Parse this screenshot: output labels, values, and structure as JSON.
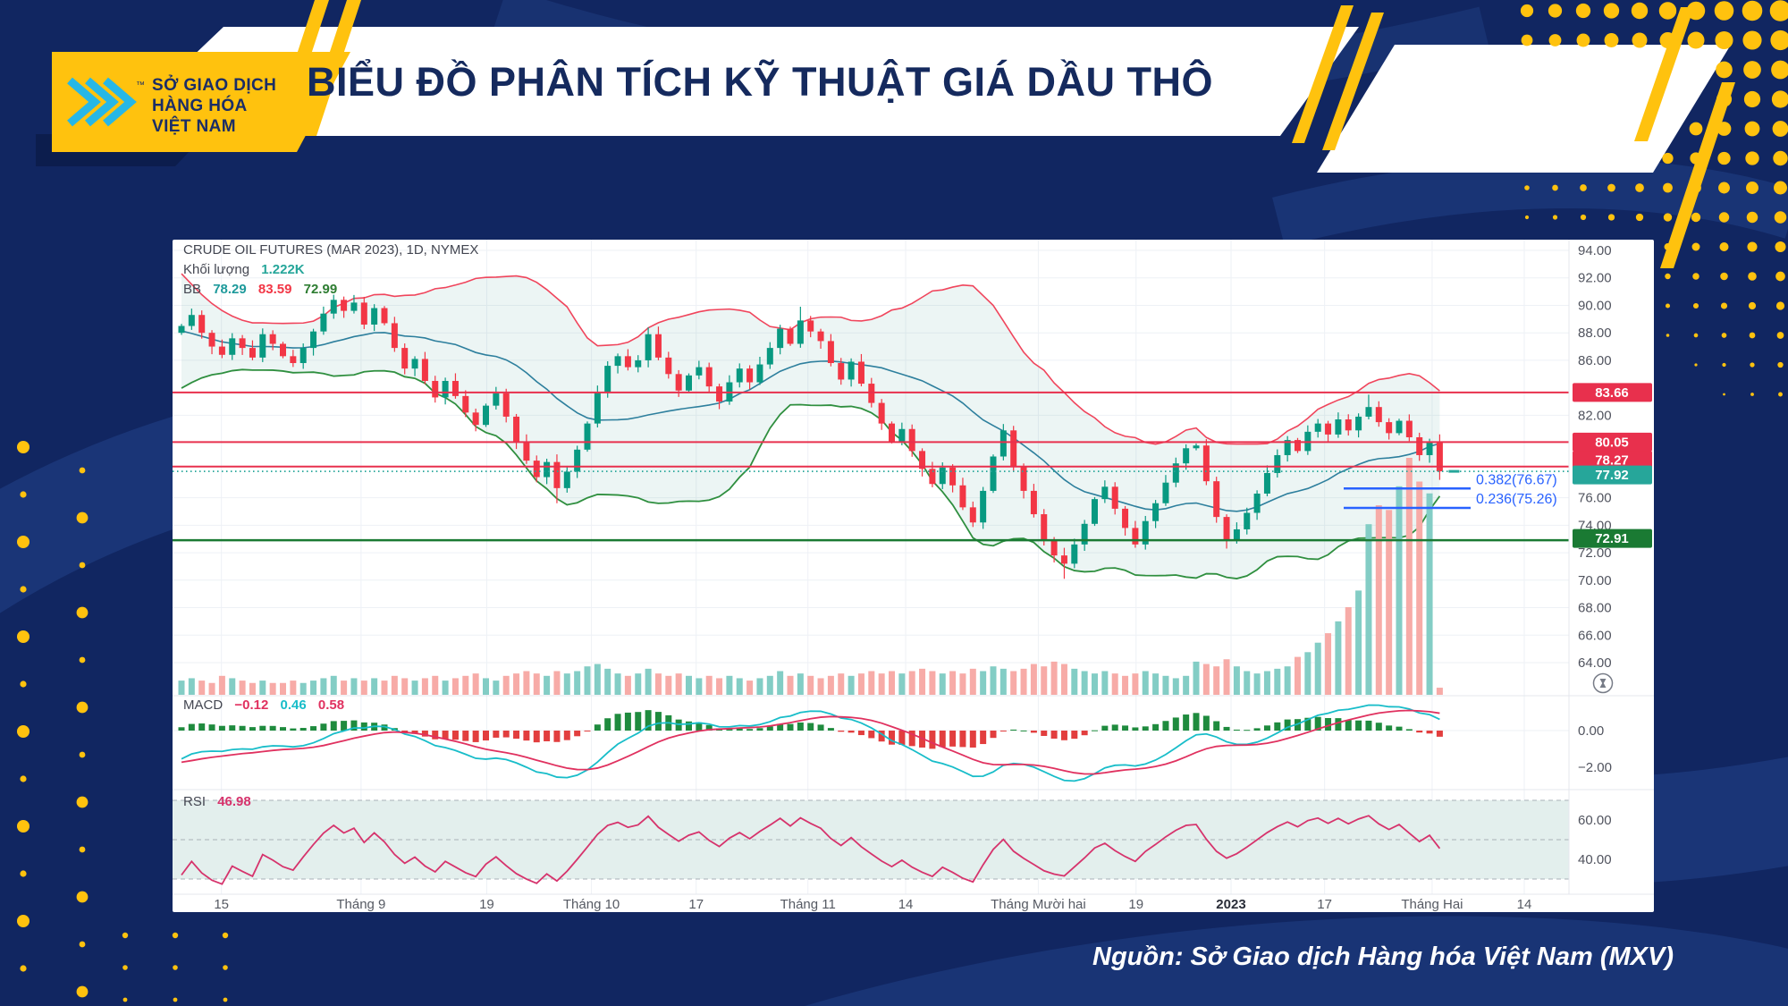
{
  "header": {
    "title": "BIỂU ĐỒ PHÂN TÍCH KỸ THUẬT GIÁ DẦU THÔ",
    "logo_line1": "SỞ GIAO DỊCH",
    "logo_line2": "HÀNG HÓA",
    "logo_line3": "VIỆT NAM",
    "trademark": "TM"
  },
  "footer": {
    "source": "Nguồn: Sở Giao dịch Hàng hóa Việt Nam (MXV)"
  },
  "legend": {
    "symbol": "CRUDE OIL FUTURES (MAR 2023), 1D, NYMEX",
    "volume_label": "Khối lượng",
    "volume_value": "1.222K",
    "bb_label": "BB",
    "bb_v1": "78.29",
    "bb_v2": "83.59",
    "bb_v3": "72.99"
  },
  "macd_legend": {
    "label": "MACD",
    "v1": "−0.12",
    "v2": "0.46",
    "v3": "0.58"
  },
  "rsi_legend": {
    "label": "RSI",
    "value": "46.98"
  },
  "brand_colors": {
    "navy": "#112661",
    "yellow": "#ffc20e",
    "cyan": "#27b7e6",
    "title_navy": "#152a5e"
  },
  "chart_data": {
    "type": "candlestick",
    "symbol": "CRUDE OIL FUTURES (MAR 2023)",
    "interval": "1D",
    "exchange": "NYMEX",
    "ylim": [
      63.5,
      94.8
    ],
    "price_ticks": [
      94,
      92,
      90,
      88,
      86,
      82,
      76,
      74,
      72,
      70,
      68,
      66,
      64
    ],
    "levels": [
      {
        "price": 83.66,
        "badge": "83.66",
        "color": "#e8304d",
        "style": "solid",
        "badge_dy": 0
      },
      {
        "price": 80.05,
        "badge": "80.05",
        "color": "#e8304d",
        "style": "solid",
        "badge_dy": 0
      },
      {
        "price": 78.27,
        "badge": "78.27",
        "color": "#e8304d",
        "style": "solid",
        "badge_dy": -7
      },
      {
        "price": 77.92,
        "badge": "77.92",
        "color": "#26a69a",
        "style": "dotted",
        "badge_dy": 4
      },
      {
        "price": 72.91,
        "badge": "72.91",
        "color": "#1a7a33",
        "style": "solid",
        "badge_dy": -2
      }
    ],
    "fib_levels": [
      {
        "label": "0.382(76.67)",
        "price": 76.67
      },
      {
        "label": "0.236(75.26)",
        "price": 75.26
      }
    ],
    "x_labels": [
      {
        "t": "15",
        "f": 0.035,
        "bold": false
      },
      {
        "t": "Tháng 9",
        "f": 0.135,
        "bold": false
      },
      {
        "t": "19",
        "f": 0.225,
        "bold": false
      },
      {
        "t": "Tháng 10",
        "f": 0.3,
        "bold": false
      },
      {
        "t": "17",
        "f": 0.375,
        "bold": false
      },
      {
        "t": "Tháng 11",
        "f": 0.455,
        "bold": false
      },
      {
        "t": "14",
        "f": 0.525,
        "bold": false
      },
      {
        "t": "Tháng Mười hai",
        "f": 0.62,
        "bold": false
      },
      {
        "t": "19",
        "f": 0.69,
        "bold": false
      },
      {
        "t": "2023",
        "f": 0.758,
        "bold": true
      },
      {
        "t": "17",
        "f": 0.825,
        "bold": false
      },
      {
        "t": "Tháng Hai",
        "f": 0.902,
        "bold": false
      },
      {
        "t": "14",
        "f": 0.968,
        "bold": false
      }
    ],
    "open_first": 88.0,
    "seed_closes": [
      94.0,
      93.0,
      92.1,
      91.2,
      90.4,
      89.8,
      89.1,
      88.5,
      87.9,
      87.5,
      87.1,
      86.8,
      86.6,
      86.5,
      86.4,
      86.3,
      86.2,
      86.1,
      86.0,
      86.8
    ],
    "close": [
      88.5,
      89.3,
      88.0,
      87.0,
      86.4,
      87.6,
      86.9,
      86.2,
      87.9,
      87.2,
      86.3,
      85.8,
      86.9,
      88.1,
      89.4,
      90.4,
      89.6,
      90.2,
      88.6,
      89.8,
      88.7,
      86.9,
      85.4,
      86.1,
      84.5,
      83.3,
      84.5,
      83.4,
      82.2,
      81.3,
      82.7,
      83.6,
      81.9,
      80.1,
      78.7,
      77.5,
      78.6,
      76.7,
      77.9,
      79.5,
      81.4,
      83.7,
      85.6,
      86.3,
      85.5,
      86.0,
      87.9,
      86.2,
      85.0,
      83.8,
      84.9,
      85.5,
      84.1,
      83.0,
      84.4,
      85.4,
      84.4,
      85.7,
      86.9,
      88.3,
      87.2,
      88.9,
      88.1,
      87.4,
      85.8,
      84.6,
      85.9,
      84.3,
      82.9,
      81.4,
      80.1,
      81.0,
      79.4,
      78.1,
      77.0,
      78.2,
      76.9,
      75.3,
      74.2,
      76.5,
      79.0,
      80.9,
      78.3,
      76.5,
      74.8,
      72.9,
      71.8,
      71.2,
      72.6,
      74.1,
      75.9,
      76.8,
      75.2,
      73.8,
      72.6,
      74.3,
      75.6,
      77.1,
      78.5,
      79.6,
      79.8,
      77.2,
      74.6,
      72.9,
      73.7,
      74.9,
      76.3,
      77.8,
      79.1,
      80.2,
      79.4,
      80.8,
      81.4,
      80.6,
      81.7,
      80.9,
      81.9,
      82.6,
      81.5,
      80.7,
      81.6,
      80.4,
      79.1,
      80.1,
      77.92
    ],
    "volume": [
      0.06,
      0.07,
      0.06,
      0.05,
      0.08,
      0.07,
      0.06,
      0.05,
      0.06,
      0.05,
      0.05,
      0.06,
      0.05,
      0.06,
      0.07,
      0.08,
      0.06,
      0.07,
      0.06,
      0.07,
      0.06,
      0.08,
      0.07,
      0.06,
      0.07,
      0.08,
      0.06,
      0.07,
      0.08,
      0.09,
      0.07,
      0.06,
      0.08,
      0.09,
      0.1,
      0.09,
      0.08,
      0.1,
      0.09,
      0.1,
      0.12,
      0.13,
      0.11,
      0.09,
      0.08,
      0.09,
      0.11,
      0.09,
      0.08,
      0.09,
      0.08,
      0.07,
      0.08,
      0.07,
      0.08,
      0.07,
      0.06,
      0.07,
      0.08,
      0.1,
      0.08,
      0.09,
      0.08,
      0.07,
      0.08,
      0.09,
      0.08,
      0.09,
      0.1,
      0.09,
      0.1,
      0.09,
      0.1,
      0.11,
      0.1,
      0.09,
      0.1,
      0.09,
      0.11,
      0.1,
      0.12,
      0.11,
      0.1,
      0.11,
      0.13,
      0.12,
      0.14,
      0.13,
      0.11,
      0.1,
      0.09,
      0.1,
      0.09,
      0.08,
      0.09,
      0.1,
      0.09,
      0.08,
      0.07,
      0.08,
      0.14,
      0.13,
      0.12,
      0.15,
      0.12,
      0.1,
      0.09,
      0.1,
      0.11,
      0.12,
      0.16,
      0.18,
      0.22,
      0.26,
      0.31,
      0.37,
      0.44,
      0.72,
      0.8,
      0.78,
      0.88,
      1.0,
      0.9,
      0.85,
      0.03
    ],
    "wick_overrides": {
      "37": {
        "lo": 75.6
      },
      "46": {
        "hi": 88.4
      },
      "61": {
        "hi": 89.9
      },
      "87": {
        "lo": 70.1
      },
      "103": {
        "lo": 72.3
      },
      "117": {
        "hi": 83.5
      },
      "124": {
        "lo": 77.3
      }
    },
    "macd_ticks": [
      {
        "t": "0.00",
        "v": 0
      },
      {
        "t": "−2.00",
        "v": -2
      }
    ],
    "rsi_ticks": [
      {
        "t": "60.00",
        "v": 60
      },
      {
        "t": "40.00",
        "v": 40
      }
    ],
    "rsi_bands": [
      70,
      50,
      30
    ],
    "colors": {
      "up": "#089981",
      "down": "#f23645",
      "vol_up": "#83cdc5",
      "vol_down": "#f7aba7",
      "bb_upper": "#f0455c",
      "bb_mid": "#2d7f9d",
      "bb_lower": "#2f8f3f",
      "bb_fill": "rgba(42,140,132,0.09)",
      "macd_line": "#18bdc9",
      "macd_signal": "#e0315f",
      "hist_pos": "#1f8b3e",
      "hist_neg": "#e23e3e",
      "rsi_line": "#d6336c",
      "rsi_band_fill": "#e3efed",
      "fib": "#2962ff",
      "grid": "#eef1f6",
      "axis_text": "#50535e",
      "separator": "#e4e7ee"
    }
  }
}
